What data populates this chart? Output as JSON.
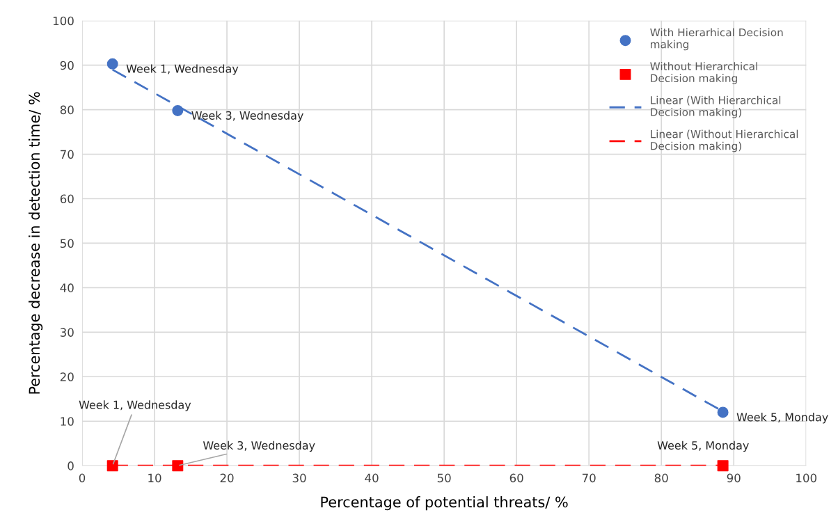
{
  "chart_data": {
    "type": "scatter",
    "xlabel": "Percentage of potential threats/ %",
    "ylabel": "Percentage decrease in detection time/ %",
    "xlim": [
      0,
      100
    ],
    "ylim": [
      0,
      100
    ],
    "xticks": [
      0,
      10,
      20,
      30,
      40,
      50,
      60,
      70,
      80,
      90,
      100
    ],
    "yticks": [
      0,
      10,
      20,
      30,
      40,
      50,
      60,
      70,
      80,
      90,
      100
    ],
    "grid": true,
    "legend": "top right",
    "series": [
      {
        "name": "With Hierarhical Decision making",
        "color": "#4472c4",
        "marker": "circle",
        "x": [
          4.2,
          13.2,
          88.5
        ],
        "values": [
          90.3,
          79.8,
          12.0
        ]
      },
      {
        "name": "Without Hierarchical Decision making",
        "color": "#ff0000",
        "marker": "square",
        "x": [
          4.2,
          13.2,
          88.5
        ],
        "values": [
          0,
          0,
          0
        ]
      },
      {
        "name": "Linear (With Hierarchical Decision making)",
        "type": "line",
        "color": "#4472c4",
        "line_style": "dashed",
        "marker": "none",
        "x": [
          4.2,
          88.5
        ],
        "values": [
          89.0,
          12.2
        ]
      },
      {
        "name": "Linear (Without Hierarchical Decision making)",
        "type": "line",
        "color": "#ff0000",
        "line_style": "dashed",
        "marker": "none",
        "x": [
          4.2,
          88.5
        ],
        "values": [
          0,
          0
        ]
      }
    ],
    "annotations": [
      {
        "text": "Week 1, Wednesday",
        "x": 4.2,
        "y": 90.3
      },
      {
        "text": "Week 3, Wednesday",
        "x": 13.2,
        "y": 79.8
      },
      {
        "text": "Week 5, Monday",
        "x": 88.5,
        "y": 12.0
      },
      {
        "text": "Week 1, Wednesday",
        "x": 4.2,
        "y": 0
      },
      {
        "text": "Week 3, Wednesday",
        "x": 13.2,
        "y": 0
      },
      {
        "text": "Week 5, Monday",
        "x": 88.5,
        "y": 0
      }
    ]
  }
}
